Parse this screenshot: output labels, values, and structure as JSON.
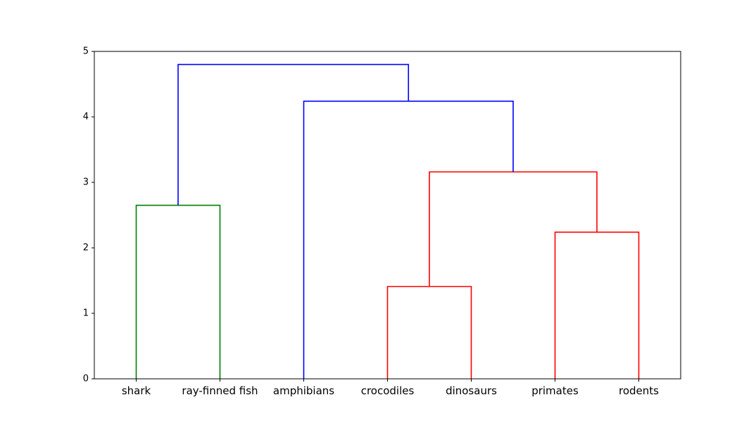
{
  "chart_data": {
    "type": "dendrogram",
    "title": "",
    "xlabel": "",
    "ylabel": "",
    "ylim": [
      0,
      5
    ],
    "yticks": [
      0,
      1,
      2,
      3,
      4,
      5
    ],
    "grid": false,
    "leaves": [
      "shark",
      "ray-finned fish",
      "amphibians",
      "crocodiles",
      "dinosaurs",
      "primates",
      "rodents"
    ],
    "links": [
      {
        "left": "crocodiles",
        "right": "dinosaurs",
        "height": 1.41,
        "color": "#ff0000"
      },
      {
        "left": "primates",
        "right": "rodents",
        "height": 2.24,
        "color": "#ff0000"
      },
      {
        "left": "shark",
        "right": "ray-finned fish",
        "height": 2.65,
        "color": "#008000"
      },
      {
        "left": "crocodiles+dinosaurs",
        "right": "primates+rodents",
        "height": 3.16,
        "color": "#ff0000"
      },
      {
        "left": "amphibians",
        "right": "crocodiles+dinosaurs+primates+rodents",
        "height": 4.24,
        "color": "#0000ff"
      },
      {
        "left": "shark+ray-finned fish",
        "right": "amphibians+crocodiles+dinosaurs+primates+rodents",
        "height": 4.8,
        "color": "#0000ff"
      }
    ]
  }
}
